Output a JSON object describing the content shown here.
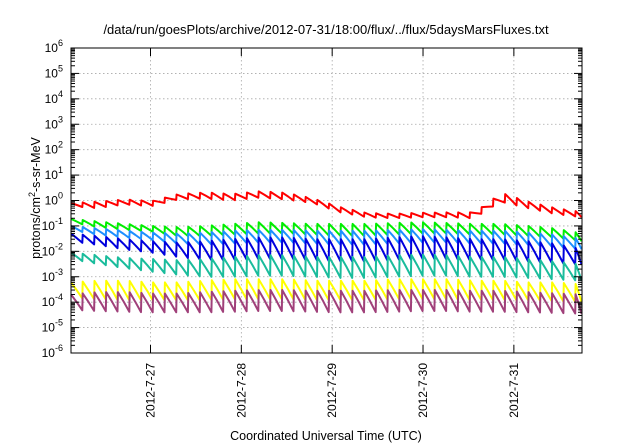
{
  "chart_data": {
    "type": "line",
    "title": "/data/run/goesPlots/archive/2012-07-31/18:00/flux/../flux/5daysMarsFluxes.txt",
    "xlabel": "Coordinated Universal Time (UTC)",
    "ylabel": {
      "prefix": "protons/cm",
      "sup": "2",
      "suffix": "-s-sr-MeV"
    },
    "yscale": "log",
    "ylim": [
      1e-06,
      1000000.0
    ],
    "xlim": [
      "2012-07-26 03:00",
      "2012-07-31 18:00"
    ],
    "grid": true,
    "x_ticks": [
      {
        "label": "2012-7-27",
        "at": "2012-07-27 00:00"
      },
      {
        "label": "2012-7-28",
        "at": "2012-07-28 00:00"
      },
      {
        "label": "2012-7-29",
        "at": "2012-07-29 00:00"
      },
      {
        "label": "2012-7-30",
        "at": "2012-07-30 00:00"
      },
      {
        "label": "2012-7-31",
        "at": "2012-07-31 00:00"
      }
    ],
    "y_ticks": [
      {
        "base": "10",
        "exp": "-6"
      },
      {
        "base": "10",
        "exp": "-5"
      },
      {
        "base": "10",
        "exp": "-4"
      },
      {
        "base": "10",
        "exp": "-3"
      },
      {
        "base": "10",
        "exp": "-2"
      },
      {
        "base": "10",
        "exp": "-1"
      },
      {
        "base": "10",
        "exp": "0"
      },
      {
        "base": "10",
        "exp": "1"
      },
      {
        "base": "10",
        "exp": "2"
      },
      {
        "base": "10",
        "exp": "3"
      },
      {
        "base": "10",
        "exp": "4"
      },
      {
        "base": "10",
        "exp": "5"
      },
      {
        "base": "10",
        "exp": "6"
      }
    ],
    "series": [
      {
        "color": "#ff0000",
        "sawtooth_period_hours": 3.1,
        "y_peaks": [
          0.8,
          0.9,
          1.1,
          0.95,
          1.8,
          2.1,
          1.8,
          2.3,
          2.0,
          1.2,
          0.55,
          0.32,
          0.3,
          0.33,
          0.34,
          0.34,
          2.0,
          0.9,
          0.5,
          0.35
        ],
        "y_troughs": [
          0.6,
          0.5,
          0.7,
          0.6,
          1.1,
          1.2,
          1.0,
          1.3,
          1.1,
          0.8,
          0.35,
          0.22,
          0.2,
          0.22,
          0.22,
          0.2,
          0.9,
          0.5,
          0.3,
          0.22
        ]
      },
      {
        "color": "#00ee00",
        "sawtooth_period_hours": 3.1,
        "y_peaks": [
          0.19,
          0.15,
          0.12,
          0.1,
          0.09,
          0.1,
          0.12,
          0.14,
          0.13,
          0.12,
          0.12,
          0.12,
          0.13,
          0.14,
          0.13,
          0.12,
          0.12,
          0.1,
          0.08,
          0.05
        ],
        "y_troughs": [
          0.14,
          0.09,
          0.07,
          0.06,
          0.04,
          0.04,
          0.045,
          0.05,
          0.05,
          0.045,
          0.04,
          0.04,
          0.045,
          0.05,
          0.05,
          0.045,
          0.045,
          0.04,
          0.035,
          0.025
        ]
      },
      {
        "color": "#1e90ff",
        "sawtooth_period_hours": 3.1,
        "y_peaks": [
          0.1,
          0.08,
          0.065,
          0.055,
          0.05,
          0.055,
          0.065,
          0.07,
          0.07,
          0.065,
          0.065,
          0.065,
          0.07,
          0.075,
          0.07,
          0.065,
          0.065,
          0.055,
          0.045,
          0.03
        ],
        "y_troughs": [
          0.07,
          0.045,
          0.035,
          0.028,
          0.02,
          0.018,
          0.02,
          0.022,
          0.022,
          0.02,
          0.018,
          0.018,
          0.02,
          0.022,
          0.022,
          0.02,
          0.02,
          0.018,
          0.015,
          0.012
        ]
      },
      {
        "color": "#0000dd",
        "sawtooth_period_hours": 3.1,
        "y_peaks": [
          0.05,
          0.04,
          0.03,
          0.025,
          0.022,
          0.025,
          0.03,
          0.035,
          0.035,
          0.03,
          0.03,
          0.03,
          0.035,
          0.04,
          0.035,
          0.03,
          0.03,
          0.025,
          0.02,
          0.012
        ],
        "y_troughs": [
          0.025,
          0.018,
          0.012,
          0.009,
          0.006,
          0.0045,
          0.0045,
          0.005,
          0.005,
          0.0045,
          0.004,
          0.004,
          0.0045,
          0.005,
          0.005,
          0.0045,
          0.0045,
          0.004,
          0.0035,
          0.003
        ]
      },
      {
        "color": "#1abc9c",
        "sawtooth_period_hours": 3.1,
        "y_peaks": [
          0.009,
          0.007,
          0.0055,
          0.005,
          0.0045,
          0.005,
          0.006,
          0.007,
          0.007,
          0.006,
          0.006,
          0.006,
          0.007,
          0.0075,
          0.007,
          0.006,
          0.006,
          0.005,
          0.004,
          0.003
        ],
        "y_troughs": [
          0.005,
          0.0032,
          0.0022,
          0.0016,
          0.0012,
          0.001,
          0.001,
          0.0011,
          0.0011,
          0.001,
          0.0009,
          0.0009,
          0.001,
          0.0011,
          0.0011,
          0.001,
          0.001,
          0.0009,
          0.0008,
          0.0007
        ]
      },
      {
        "color": "#ffff00",
        "sawtooth_period_hours": 3.1,
        "y_peaks": [
          0.0006,
          0.0007,
          0.0007,
          0.0006,
          0.0006,
          0.0007,
          0.0008,
          0.0008,
          0.0008,
          0.0007,
          0.0007,
          0.0007,
          0.0008,
          0.0008,
          0.0008,
          0.0007,
          0.0007,
          0.0006,
          0.0006,
          0.0005
        ],
        "y_troughs": [
          0.00015,
          0.00013,
          0.00012,
          0.00012,
          0.00012,
          0.00012,
          0.00013,
          0.00013,
          0.00013,
          0.00012,
          0.00012,
          0.00012,
          0.00013,
          0.00013,
          0.00013,
          0.00012,
          0.00012,
          0.00012,
          0.00011,
          0.0001
        ]
      },
      {
        "color": "#a0407a",
        "sawtooth_period_hours": 3.1,
        "y_peaks": [
          0.0002,
          0.00025,
          0.00025,
          0.00022,
          0.00022,
          0.00025,
          0.00028,
          0.0003,
          0.0003,
          0.00028,
          0.00028,
          0.00028,
          0.0003,
          0.0003,
          0.0003,
          0.00028,
          0.00028,
          0.00025,
          0.00022,
          0.0002
        ],
        "y_troughs": [
          5e-05,
          4.5e-05,
          4.2e-05,
          4e-05,
          4e-05,
          4e-05,
          4.2e-05,
          4.5e-05,
          4.5e-05,
          4.2e-05,
          4e-05,
          4e-05,
          4.2e-05,
          4.5e-05,
          4.5e-05,
          4.2e-05,
          4.2e-05,
          4e-05,
          3.8e-05,
          3.5e-05
        ]
      }
    ]
  }
}
